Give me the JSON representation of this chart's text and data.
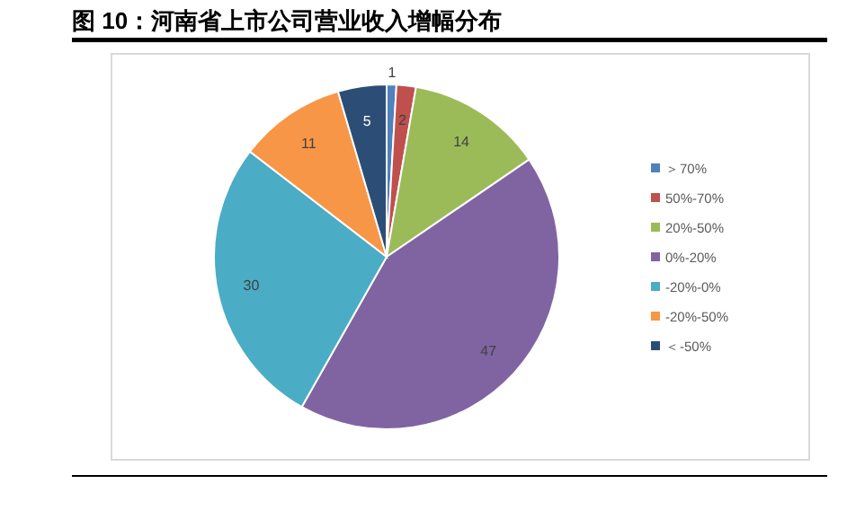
{
  "chart_data": {
    "type": "pie",
    "title": "图 10：河南省上市公司营业收入增幅分布",
    "categories": [
      "＞70%",
      "50%-70%",
      "20%-50%",
      "0%-20%",
      "-20%-0%",
      "-20%-50%",
      "＜-50%"
    ],
    "values": [
      1,
      2,
      14,
      47,
      30,
      11,
      5
    ],
    "colors": [
      "#4f81bd",
      "#c0504d",
      "#9bbb59",
      "#8064a2",
      "#4bacc6",
      "#f79646",
      "#2c4d75"
    ],
    "data_labels": true,
    "legend": "right"
  }
}
